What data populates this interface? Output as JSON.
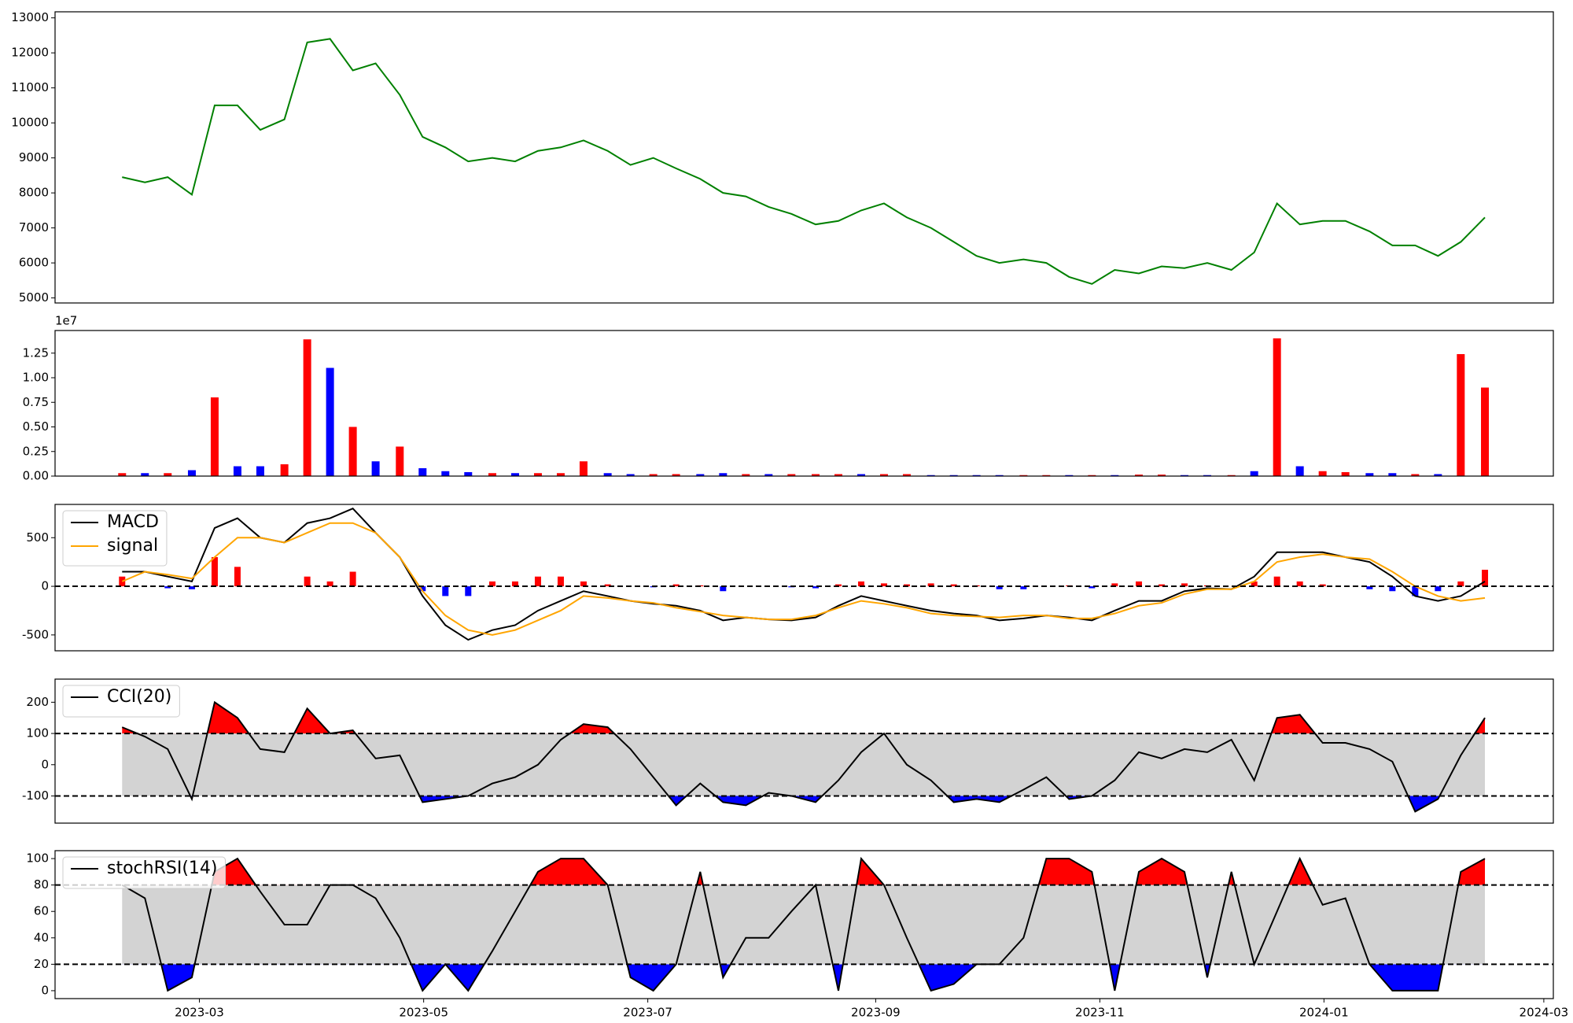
{
  "chart_data": [
    {
      "type": "line",
      "color": "green",
      "x": [
        2023.104,
        2023.121,
        2023.138,
        2023.156,
        2023.173,
        2023.19,
        2023.207,
        2023.225,
        2023.242,
        2023.259,
        2023.276,
        2023.293,
        2023.311,
        2023.328,
        2023.345,
        2023.362,
        2023.38,
        2023.397,
        2023.414,
        2023.431,
        2023.448,
        2023.466,
        2023.483,
        2023.5,
        2023.517,
        2023.535,
        2023.552,
        2023.569,
        2023.586,
        2023.603,
        2023.621,
        2023.638,
        2023.655,
        2023.672,
        2023.689,
        2023.707,
        2023.724,
        2023.741,
        2023.758,
        2023.776,
        2023.793,
        2023.81,
        2023.827,
        2023.844,
        2023.862,
        2023.879,
        2023.896,
        2023.913,
        2023.931,
        2023.948,
        2023.965,
        2023.982,
        2023.999,
        2024.016,
        2024.034,
        2024.051,
        2024.068,
        2024.085,
        2024.102,
        2024.12
      ],
      "values": [
        8450,
        8300,
        8450,
        7950,
        10500,
        10500,
        9800,
        10100,
        12300,
        12400,
        11500,
        11700,
        10800,
        9600,
        9300,
        8900,
        9000,
        8900,
        9200,
        9300,
        9500,
        9200,
        8800,
        9000,
        8700,
        8400,
        8000,
        7900,
        7600,
        7400,
        7100,
        7200,
        7500,
        7700,
        7300,
        7000,
        6600,
        6200,
        6000,
        6100,
        6000,
        5600,
        5400,
        5800,
        5700,
        5900,
        5850,
        6000,
        5800,
        6300,
        7700,
        7100,
        7200,
        7200,
        6900,
        6500,
        6500,
        6200,
        6600,
        7300
      ],
      "xlim": [
        2023.054,
        2024.171
      ],
      "ylim": [
        4856,
        13173
      ],
      "yticks": [
        5000,
        6000,
        7000,
        8000,
        9000,
        10000,
        11000,
        12000,
        13000
      ]
    },
    {
      "type": "bar",
      "offset_label": "1e7",
      "x": [
        2023.104,
        2023.121,
        2023.138,
        2023.156,
        2023.173,
        2023.19,
        2023.207,
        2023.225,
        2023.242,
        2023.259,
        2023.276,
        2023.293,
        2023.311,
        2023.328,
        2023.345,
        2023.362,
        2023.38,
        2023.397,
        2023.414,
        2023.431,
        2023.448,
        2023.466,
        2023.483,
        2023.5,
        2023.517,
        2023.535,
        2023.552,
        2023.569,
        2023.586,
        2023.603,
        2023.621,
        2023.638,
        2023.655,
        2023.672,
        2023.689,
        2023.707,
        2023.724,
        2023.741,
        2023.758,
        2023.776,
        2023.793,
        2023.81,
        2023.827,
        2023.844,
        2023.862,
        2023.879,
        2023.896,
        2023.913,
        2023.931,
        2023.948,
        2023.965,
        2023.982,
        2023.999,
        2024.016,
        2024.034,
        2024.051,
        2024.068,
        2024.085,
        2024.102,
        2024.12
      ],
      "values": [
        300000,
        300000,
        300000,
        600000,
        8000000,
        1000000,
        1000000,
        1200000,
        13900000,
        11000000,
        5000000,
        1500000,
        3000000,
        800000,
        500000,
        400000,
        300000,
        300000,
        300000,
        300000,
        1500000,
        300000,
        200000,
        200000,
        200000,
        200000,
        300000,
        200000,
        200000,
        200000,
        200000,
        200000,
        200000,
        200000,
        200000,
        100000,
        100000,
        100000,
        100000,
        100000,
        100000,
        100000,
        100000,
        100000,
        150000,
        150000,
        100000,
        100000,
        100000,
        500000,
        14000000,
        1000000,
        500000,
        400000,
        300000,
        300000,
        200000,
        200000,
        12400000,
        9000000
      ],
      "colors": [
        "red",
        "blue",
        "red",
        "blue",
        "red",
        "blue",
        "blue",
        "red",
        "red",
        "blue",
        "red",
        "blue",
        "red",
        "blue",
        "blue",
        "blue",
        "red",
        "blue",
        "red",
        "red",
        "red",
        "blue",
        "blue",
        "red",
        "red",
        "blue",
        "blue",
        "red",
        "blue",
        "red",
        "red",
        "red",
        "blue",
        "red",
        "red",
        "blue",
        "blue",
        "blue",
        "blue",
        "red",
        "red",
        "blue",
        "red",
        "blue",
        "red",
        "red",
        "blue",
        "blue",
        "red",
        "blue",
        "red",
        "blue",
        "red",
        "red",
        "blue",
        "blue",
        "red",
        "blue",
        "red",
        "red"
      ],
      "xlim": [
        2023.054,
        2024.171
      ],
      "ylim": [
        0,
        14800000
      ],
      "yticks": [
        {
          "value": 0,
          "label": "0.00"
        },
        {
          "value": 2500000,
          "label": "0.25"
        },
        {
          "value": 5000000,
          "label": "0.50"
        },
        {
          "value": 7500000,
          "label": "0.75"
        },
        {
          "value": 10000000,
          "label": "1.00"
        },
        {
          "value": 12500000,
          "label": "1.25"
        }
      ]
    },
    {
      "type": "line",
      "legend": "upper left",
      "hlines": [
        0
      ],
      "x": [
        2023.104,
        2023.121,
        2023.138,
        2023.156,
        2023.173,
        2023.19,
        2023.207,
        2023.225,
        2023.242,
        2023.259,
        2023.276,
        2023.293,
        2023.311,
        2023.328,
        2023.345,
        2023.362,
        2023.38,
        2023.397,
        2023.414,
        2023.431,
        2023.448,
        2023.466,
        2023.483,
        2023.5,
        2023.517,
        2023.535,
        2023.552,
        2023.569,
        2023.586,
        2023.603,
        2023.621,
        2023.638,
        2023.655,
        2023.672,
        2023.689,
        2023.707,
        2023.724,
        2023.741,
        2023.758,
        2023.776,
        2023.793,
        2023.81,
        2023.827,
        2023.844,
        2023.862,
        2023.879,
        2023.896,
        2023.913,
        2023.931,
        2023.948,
        2023.965,
        2023.982,
        2023.999,
        2024.016,
        2024.034,
        2024.051,
        2024.068,
        2024.085,
        2024.102,
        2024.12
      ],
      "series": [
        {
          "name": "MACD",
          "color": "black",
          "values": [
            150,
            150,
            100,
            50,
            600,
            700,
            500,
            450,
            650,
            700,
            800,
            550,
            300,
            -100,
            -400,
            -550,
            -450,
            -400,
            -250,
            -150,
            -50,
            -100,
            -150,
            -180,
            -200,
            -250,
            -350,
            -320,
            -340,
            -350,
            -320,
            -200,
            -100,
            -150,
            -200,
            -250,
            -280,
            -300,
            -350,
            -330,
            -300,
            -320,
            -350,
            -250,
            -150,
            -150,
            -50,
            -20,
            -30,
            100,
            350,
            350,
            350,
            300,
            250,
            100,
            -100,
            -150,
            -100,
            50
          ]
        },
        {
          "name": "signal",
          "color": "orange",
          "values": [
            50,
            150,
            120,
            80,
            300,
            500,
            500,
            450,
            550,
            650,
            650,
            550,
            300,
            -50,
            -300,
            -450,
            -500,
            -450,
            -350,
            -250,
            -100,
            -120,
            -150,
            -170,
            -220,
            -260,
            -300,
            -320,
            -340,
            -340,
            -300,
            -220,
            -150,
            -180,
            -220,
            -280,
            -300,
            -310,
            -320,
            -300,
            -300,
            -330,
            -330,
            -280,
            -200,
            -170,
            -80,
            -30,
            -30,
            50,
            250,
            300,
            330,
            300,
            280,
            150,
            0,
            -100,
            -150,
            -120
          ]
        }
      ],
      "histogram": {
        "positive_color": "red",
        "negative_color": "blue",
        "values": [
          100,
          0,
          -20,
          -30,
          300,
          200,
          0,
          0,
          100,
          50,
          150,
          0,
          0,
          -50,
          -100,
          -100,
          50,
          50,
          100,
          100,
          50,
          20,
          0,
          -10,
          20,
          10,
          -50,
          0,
          0,
          -10,
          -20,
          20,
          50,
          30,
          20,
          30,
          20,
          10,
          -30,
          -30,
          0,
          10,
          -20,
          30,
          50,
          20,
          30,
          10,
          0,
          50,
          100,
          50,
          20,
          0,
          -30,
          -50,
          -100,
          -50,
          50,
          170
        ]
      },
      "xlim": [
        2023.054,
        2024.171
      ],
      "ylim": [
        -663,
        842
      ],
      "yticks": [
        -500,
        0,
        500
      ]
    },
    {
      "type": "line",
      "legend": "upper left",
      "thresholds": [
        100,
        -100
      ],
      "band_color": "lightgray",
      "above_color": "red",
      "below_color": "blue",
      "x": [
        2023.104,
        2023.121,
        2023.138,
        2023.156,
        2023.173,
        2023.19,
        2023.207,
        2023.225,
        2023.242,
        2023.259,
        2023.276,
        2023.293,
        2023.311,
        2023.328,
        2023.345,
        2023.362,
        2023.38,
        2023.397,
        2023.414,
        2023.431,
        2023.448,
        2023.466,
        2023.483,
        2023.5,
        2023.517,
        2023.535,
        2023.552,
        2023.569,
        2023.586,
        2023.603,
        2023.621,
        2023.638,
        2023.655,
        2023.672,
        2023.689,
        2023.707,
        2023.724,
        2023.741,
        2023.758,
        2023.776,
        2023.793,
        2023.81,
        2023.827,
        2023.844,
        2023.862,
        2023.879,
        2023.896,
        2023.913,
        2023.931,
        2023.948,
        2023.965,
        2023.982,
        2023.999,
        2024.016,
        2024.034,
        2024.051,
        2024.068,
        2024.085,
        2024.102,
        2024.12
      ],
      "series": [
        {
          "name": "CCI(20)",
          "color": "black",
          "values": [
            120,
            90,
            50,
            -110,
            200,
            150,
            50,
            40,
            180,
            100,
            110,
            20,
            30,
            -120,
            -110,
            -100,
            -60,
            -40,
            0,
            80,
            130,
            120,
            50,
            -40,
            -130,
            -60,
            -120,
            -130,
            -90,
            -100,
            -120,
            -50,
            40,
            100,
            0,
            -50,
            -120,
            -110,
            -120,
            -80,
            -40,
            -110,
            -100,
            -50,
            40,
            20,
            50,
            40,
            80,
            -50,
            150,
            160,
            70,
            70,
            50,
            10,
            -150,
            -110,
            30,
            150
          ]
        }
      ],
      "xlim": [
        2023.054,
        2024.171
      ],
      "ylim": [
        -187,
        274
      ],
      "yticks": [
        -100,
        0,
        100,
        200
      ]
    },
    {
      "type": "line",
      "legend": "upper left",
      "thresholds": [
        80,
        20
      ],
      "band_color": "lightgray",
      "above_color": "red",
      "below_color": "blue",
      "x": [
        2023.104,
        2023.121,
        2023.138,
        2023.156,
        2023.173,
        2023.19,
        2023.207,
        2023.225,
        2023.242,
        2023.259,
        2023.276,
        2023.293,
        2023.311,
        2023.328,
        2023.345,
        2023.362,
        2023.38,
        2023.397,
        2023.414,
        2023.431,
        2023.448,
        2023.466,
        2023.483,
        2023.5,
        2023.517,
        2023.535,
        2023.552,
        2023.569,
        2023.586,
        2023.603,
        2023.621,
        2023.638,
        2023.655,
        2023.672,
        2023.689,
        2023.707,
        2023.724,
        2023.741,
        2023.758,
        2023.776,
        2023.793,
        2023.81,
        2023.827,
        2023.844,
        2023.862,
        2023.879,
        2023.896,
        2023.913,
        2023.931,
        2023.948,
        2023.965,
        2023.982,
        2023.999,
        2024.016,
        2024.034,
        2024.051,
        2024.068,
        2024.085,
        2024.102,
        2024.12
      ],
      "series": [
        {
          "name": "stochRSI(14)",
          "color": "black",
          "values": [
            80,
            70,
            0,
            10,
            90,
            100,
            75,
            50,
            50,
            80,
            80,
            70,
            40,
            0,
            20,
            0,
            30,
            60,
            90,
            100,
            100,
            80,
            10,
            0,
            20,
            90,
            10,
            40,
            40,
            60,
            80,
            0,
            100,
            80,
            40,
            0,
            5,
            20,
            20,
            40,
            100,
            100,
            90,
            0,
            90,
            100,
            90,
            10,
            90,
            20,
            60,
            100,
            65,
            70,
            20,
            0,
            0,
            0,
            90,
            100
          ]
        }
      ],
      "xlim": [
        2023.054,
        2024.171
      ],
      "ylim": [
        -6,
        106
      ],
      "yticks": [
        0,
        20,
        40,
        60,
        80,
        100
      ],
      "xticks": [
        {
          "value": 2023.1616,
          "label": "2023-03"
        },
        {
          "value": 2023.3288,
          "label": "2023-05"
        },
        {
          "value": 2023.4959,
          "label": "2023-07"
        },
        {
          "value": 2023.6658,
          "label": "2023-09"
        },
        {
          "value": 2023.8329,
          "label": "2023-11"
        },
        {
          "value": 2024.0,
          "label": "2024-01"
        },
        {
          "value": 2024.1639,
          "label": "2024-03"
        }
      ]
    }
  ]
}
